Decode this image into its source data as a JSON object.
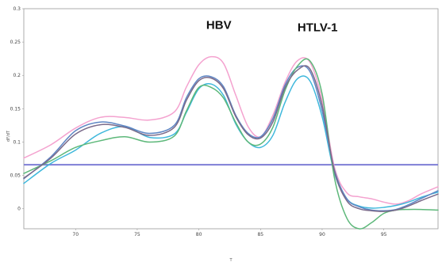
{
  "chart_data": {
    "type": "line",
    "xlabel": "T",
    "ylabel": "dF/dT",
    "xlim": [
      65.8,
      99.4
    ],
    "ylim": [
      -0.03,
      0.3
    ],
    "xticks": [
      70,
      75,
      80,
      85,
      90,
      95
    ],
    "yticks": [
      0,
      0.05,
      0.1,
      0.15,
      0.2,
      0.25,
      0.3
    ],
    "grid": false,
    "annotations": [
      {
        "text": "HBV",
        "x": 80.6,
        "y": 0.27
      },
      {
        "text": "HTLV-1",
        "x": 88.0,
        "y": 0.266
      }
    ],
    "threshold": {
      "y": 0.066,
      "color": "#7e7ed6"
    },
    "series": [
      {
        "color": "#f4a2cf",
        "x": [
          65.8,
          68,
          70,
          72,
          74,
          76,
          78,
          79,
          80,
          81,
          82,
          83,
          84,
          85,
          86,
          87,
          88,
          89,
          90,
          91,
          92,
          93,
          94,
          95,
          96,
          97,
          98,
          99.4
        ],
        "y": [
          0.076,
          0.096,
          0.121,
          0.137,
          0.137,
          0.133,
          0.145,
          0.183,
          0.216,
          0.228,
          0.218,
          0.17,
          0.123,
          0.108,
          0.14,
          0.19,
          0.222,
          0.22,
          0.163,
          0.062,
          0.024,
          0.018,
          0.015,
          0.01,
          0.007,
          0.012,
          0.022,
          0.033
        ]
      },
      {
        "color": "#3fb8dc",
        "x": [
          65.8,
          68,
          70,
          72,
          74,
          76,
          78,
          79,
          80,
          81,
          82,
          83,
          84,
          85,
          86,
          87,
          88,
          89,
          90,
          91,
          92,
          93,
          94,
          95,
          96,
          97,
          98,
          99.4
        ],
        "y": [
          0.038,
          0.068,
          0.088,
          0.113,
          0.123,
          0.107,
          0.112,
          0.145,
          0.18,
          0.187,
          0.17,
          0.127,
          0.1,
          0.092,
          0.11,
          0.16,
          0.195,
          0.192,
          0.138,
          0.053,
          0.015,
          0.004,
          0.001,
          0.002,
          0.005,
          0.01,
          0.017,
          0.025
        ]
      },
      {
        "color": "#5e86c4",
        "x": [
          65.8,
          68,
          70,
          72,
          74,
          76,
          78,
          79,
          80,
          81,
          82,
          83,
          84,
          85,
          86,
          87,
          88,
          89,
          90,
          91,
          92,
          93,
          94,
          95,
          96,
          97,
          98,
          99.4
        ],
        "y": [
          0.045,
          0.078,
          0.117,
          0.13,
          0.124,
          0.113,
          0.125,
          0.167,
          0.195,
          0.198,
          0.183,
          0.14,
          0.113,
          0.108,
          0.135,
          0.186,
          0.212,
          0.206,
          0.147,
          0.058,
          0.015,
          0.003,
          -0.002,
          -0.003,
          -0.001,
          0.006,
          0.015,
          0.027
        ]
      },
      {
        "color": "#5db87a",
        "x": [
          65.8,
          68,
          70,
          72,
          74,
          76,
          78,
          79,
          80,
          81,
          82,
          83,
          84,
          85,
          86,
          87,
          88,
          89,
          90,
          91,
          92,
          93,
          94,
          95,
          96,
          97,
          98,
          99.4
        ],
        "y": [
          0.053,
          0.072,
          0.092,
          0.102,
          0.108,
          0.1,
          0.109,
          0.147,
          0.182,
          0.182,
          0.166,
          0.129,
          0.1,
          0.097,
          0.122,
          0.178,
          0.214,
          0.222,
          0.172,
          0.046,
          -0.014,
          -0.03,
          -0.021,
          -0.007,
          -0.002,
          -0.001,
          -0.001,
          -0.002
        ]
      },
      {
        "color": "#7a6a8a",
        "x": [
          65.8,
          68,
          70,
          72,
          74,
          76,
          78,
          79,
          80,
          81,
          82,
          83,
          84,
          85,
          86,
          87,
          88,
          89,
          90,
          91,
          92,
          93,
          94,
          95,
          96,
          97,
          98,
          99.4
        ],
        "y": [
          0.046,
          0.076,
          0.112,
          0.126,
          0.122,
          0.11,
          0.122,
          0.163,
          0.192,
          0.196,
          0.18,
          0.138,
          0.111,
          0.106,
          0.13,
          0.182,
          0.208,
          0.21,
          0.155,
          0.056,
          0.012,
          0.0,
          -0.003,
          -0.004,
          -0.002,
          0.004,
          0.012,
          0.022
        ]
      }
    ]
  }
}
